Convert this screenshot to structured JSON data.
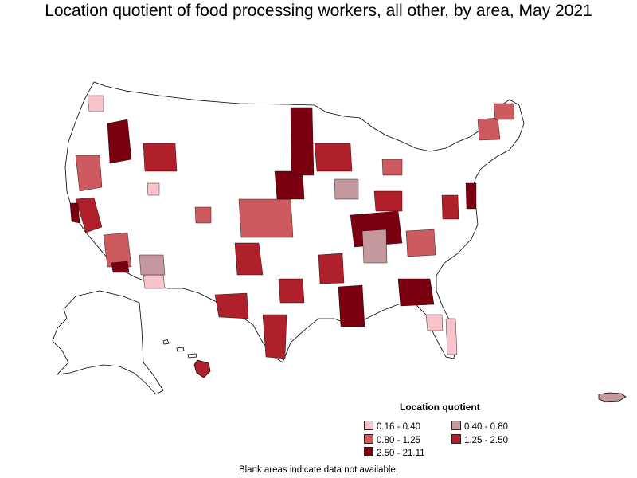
{
  "title": "Location quotient of food processing workers, all other, by area, May 2021",
  "legend": {
    "title": "Location quotient",
    "items": [
      {
        "label": "0.16 - 0.40",
        "color": "#f8c3cb"
      },
      {
        "label": "0.40 - 0.80",
        "color": "#c4989c"
      },
      {
        "label": "0.80 - 1.25",
        "color": "#cc5a5e"
      },
      {
        "label": "1.25 - 2.50",
        "color": "#b0202a"
      },
      {
        "label": "2.50 - 21.11",
        "color": "#7a0010"
      }
    ]
  },
  "footnote": "Blank areas indicate data not available.",
  "colors": {
    "no_data": "#ffffff",
    "boundary": "#000000"
  }
}
